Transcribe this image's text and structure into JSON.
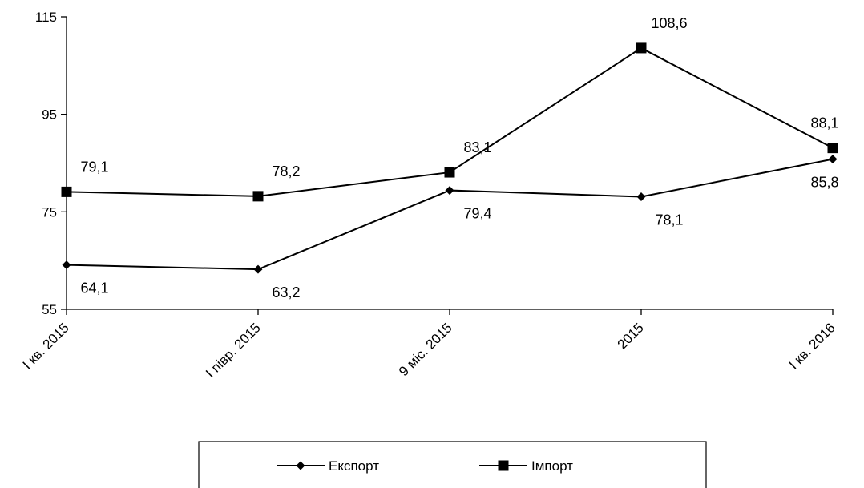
{
  "chart_data": {
    "type": "line",
    "categories": [
      "I кв. 2015",
      "I півр. 2015",
      "9 міс. 2015",
      "2015",
      "I кв. 2016"
    ],
    "ylim": [
      55,
      115
    ],
    "yticks": [
      55,
      75,
      95,
      115
    ],
    "ytick_labels": [
      "55",
      "75",
      "95",
      "115"
    ],
    "grid": false,
    "legend_position": "bottom",
    "series": [
      {
        "name": "Експорт",
        "marker": "diamond",
        "color": "#000000",
        "values": [
          64.1,
          63.2,
          79.4,
          78.1,
          85.8
        ],
        "labels": [
          "64,1",
          "63,2",
          "79,4",
          "78,1",
          "85,8"
        ]
      },
      {
        "name": "Імпорт",
        "marker": "square",
        "color": "#000000",
        "values": [
          79.1,
          78.2,
          83.1,
          108.6,
          88.1
        ],
        "labels": [
          "79,1",
          "78,2",
          "83,1",
          "108,6",
          "88,1"
        ]
      }
    ]
  }
}
